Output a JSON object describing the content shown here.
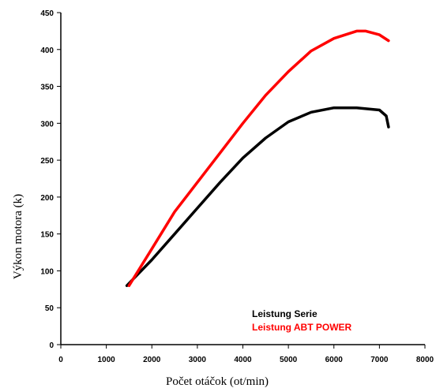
{
  "chart_data": {
    "type": "line",
    "title": "",
    "xlabel": "Počet otáčok (ot/min)",
    "ylabel": "Výkon motora (k)",
    "xlim": [
      0,
      8000
    ],
    "ylim": [
      0,
      450
    ],
    "xticks": [
      0,
      1000,
      2000,
      3000,
      4000,
      5000,
      6000,
      7000,
      8000
    ],
    "yticks": [
      0,
      50,
      100,
      150,
      200,
      250,
      300,
      350,
      400,
      450
    ],
    "grid": false,
    "legend_position": "bottom-right",
    "series": [
      {
        "name": "Leistung Serie",
        "color": "#000000",
        "x": [
          1450,
          2000,
          2500,
          3000,
          3500,
          4000,
          4500,
          5000,
          5500,
          6000,
          6500,
          7000,
          7150,
          7200
        ],
        "y": [
          80,
          115,
          150,
          185,
          220,
          253,
          280,
          302,
          315,
          321,
          321,
          318,
          310,
          295
        ]
      },
      {
        "name": "Leistung ABT POWER",
        "color": "#ff0000",
        "x": [
          1500,
          2000,
          2500,
          3000,
          3500,
          4000,
          4500,
          5000,
          5500,
          6000,
          6500,
          6700,
          7000,
          7200
        ],
        "y": [
          80,
          130,
          180,
          220,
          260,
          300,
          338,
          370,
          398,
          415,
          425,
          425,
          420,
          412
        ]
      }
    ]
  }
}
